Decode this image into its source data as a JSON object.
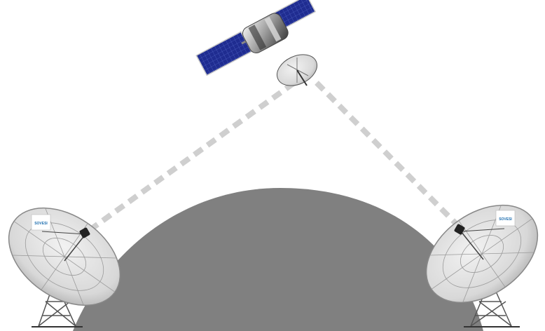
{
  "diagram": {
    "nodes": [
      {
        "id": "satellite",
        "kind": "communications-satellite"
      },
      {
        "id": "dish-left",
        "kind": "parabolic-dish-antenna",
        "logo_text": "SOVESI"
      },
      {
        "id": "dish-right",
        "kind": "parabolic-dish-antenna",
        "logo_text": "SOVESI"
      }
    ],
    "links": [
      {
        "from": "dish-left",
        "to": "satellite",
        "style": "dashed"
      },
      {
        "from": "satellite",
        "to": "dish-right",
        "style": "dashed"
      }
    ],
    "earth": {
      "shape": "dome"
    }
  },
  "colors": {
    "earth": "#808080",
    "link": "#cfcfcf",
    "solar_panel": "#1d2a8c",
    "dish": "#e6e6e6",
    "background": "#ffffff"
  }
}
